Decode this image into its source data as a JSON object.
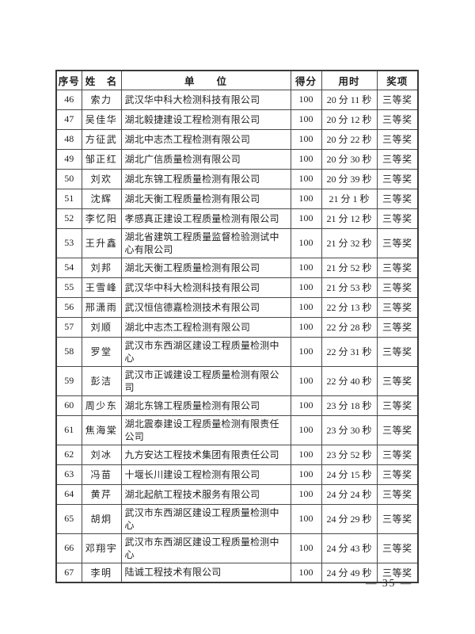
{
  "table": {
    "headers": [
      "序号",
      "姓　名",
      "单　　位",
      "得分",
      "用时",
      "奖项"
    ],
    "rows": [
      {
        "no": "46",
        "name": "索力",
        "unit": "武汉华中科大检测科技有限公司",
        "score": "100",
        "time": "20 分 11 秒",
        "award": "三等奖"
      },
      {
        "no": "47",
        "name": "吴佳华",
        "unit": "湖北毅捷建设工程检测有限公司",
        "score": "100",
        "time": "20 分 12 秒",
        "award": "三等奖"
      },
      {
        "no": "48",
        "name": "方征武",
        "unit": "湖北中志杰工程检测有限公司",
        "score": "100",
        "time": "20 分 22 秒",
        "award": "三等奖"
      },
      {
        "no": "49",
        "name": "邹正红",
        "unit": "湖北广信质量检测有限公司",
        "score": "100",
        "time": "20 分 30 秒",
        "award": "三等奖"
      },
      {
        "no": "50",
        "name": "刘欢",
        "unit": "湖北东锦工程质量检测有限公司",
        "score": "100",
        "time": "20 分 39 秒",
        "award": "三等奖"
      },
      {
        "no": "51",
        "name": "沈辉",
        "unit": "湖北天衡工程质量检测有限公司",
        "score": "100",
        "time": "21 分 1 秒",
        "award": "三等奖"
      },
      {
        "no": "52",
        "name": "李忆阳",
        "unit": "孝感真正建设工程质量检测有限公司",
        "score": "100",
        "time": "21 分 12 秒",
        "award": "三等奖"
      },
      {
        "no": "53",
        "name": "王升鑫",
        "unit": "湖北省建筑工程质量监督检验测试中心有限公司",
        "score": "100",
        "time": "21 分 32 秒",
        "award": "三等奖"
      },
      {
        "no": "54",
        "name": "刘邦",
        "unit": "湖北天衡工程质量检测有限公司",
        "score": "100",
        "time": "21 分 52 秒",
        "award": "三等奖"
      },
      {
        "no": "55",
        "name": "王雪峰",
        "unit": "武汉华中科大检测科技有限公司",
        "score": "100",
        "time": "21 分 53 秒",
        "award": "三等奖"
      },
      {
        "no": "56",
        "name": "邢潇雨",
        "unit": "武汉恒信德嘉检测技术有限公司",
        "score": "100",
        "time": "22 分 13 秒",
        "award": "三等奖"
      },
      {
        "no": "57",
        "name": "刘顺",
        "unit": "湖北中志杰工程检测有限公司",
        "score": "100",
        "time": "22 分 28 秒",
        "award": "三等奖"
      },
      {
        "no": "58",
        "name": "罗堂",
        "unit": "武汉市东西湖区建设工程质量检测中心",
        "score": "100",
        "time": "22 分 31 秒",
        "award": "三等奖"
      },
      {
        "no": "59",
        "name": "彭洁",
        "unit": "武汉市正诚建设工程质量检测有限公司",
        "score": "100",
        "time": "22 分 40 秒",
        "award": "三等奖"
      },
      {
        "no": "60",
        "name": "周少东",
        "unit": "湖北东锦工程质量检测有限公司",
        "score": "100",
        "time": "23 分 18 秒",
        "award": "三等奖"
      },
      {
        "no": "61",
        "name": "焦海棠",
        "unit": "湖北震泰建设工程质量检测有限责任公司",
        "score": "100",
        "time": "23 分 30 秒",
        "award": "三等奖"
      },
      {
        "no": "62",
        "name": "刘冰",
        "unit": "九方安达工程技术集团有限责任公司",
        "score": "100",
        "time": "23 分 52 秒",
        "award": "三等奖"
      },
      {
        "no": "63",
        "name": "冯苗",
        "unit": "十堰长川建设工程检测有限公司",
        "score": "100",
        "time": "24 分 15 秒",
        "award": "三等奖"
      },
      {
        "no": "64",
        "name": "黄芹",
        "unit": "湖北起航工程技术服务有限公司",
        "score": "100",
        "time": "24 分 24 秒",
        "award": "三等奖"
      },
      {
        "no": "65",
        "name": "胡炯",
        "unit": "武汉市东西湖区建设工程质量检测中心",
        "score": "100",
        "time": "24 分 29 秒",
        "award": "三等奖"
      },
      {
        "no": "66",
        "name": "邓翔宇",
        "unit": "武汉市东西湖区建设工程质量检测中心",
        "score": "100",
        "time": "24 分 43 秒",
        "award": "三等奖"
      },
      {
        "no": "67",
        "name": "李明",
        "unit": "陆诚工程技术有限公司",
        "score": "100",
        "time": "24 分 49 秒",
        "award": "三等奖"
      }
    ]
  },
  "footer": {
    "page_number": "— 35 —"
  }
}
